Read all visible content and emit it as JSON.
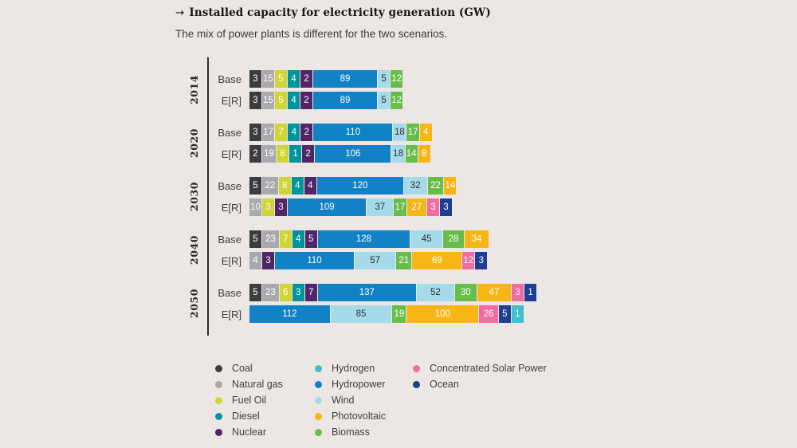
{
  "header": {
    "arrow": "→",
    "title": "Installed capacity for electricity generation (GW)",
    "subtitle": "The mix of power plants is different for the two scenarios."
  },
  "colors": {
    "background": "#ece7e5",
    "axis": "#2b2b2b",
    "coal": "#3c3c3e",
    "natural_gas": "#a8a9ad",
    "fuel_oil": "#cfd535",
    "diesel": "#00939e",
    "nuclear": "#522566",
    "hydrogen": "#3ebfc9",
    "hydropower": "#1182c6",
    "wind": "#a5dbe9",
    "photovoltaic": "#f8b616",
    "biomass": "#67bd4a",
    "csp": "#f06ca3",
    "ocean": "#1d3e92"
  },
  "legend": {
    "columns": [
      [
        {
          "key": "coal",
          "label": "Coal"
        },
        {
          "key": "natural_gas",
          "label": "Natural gas"
        },
        {
          "key": "fuel_oil",
          "label": "Fuel Oil"
        },
        {
          "key": "diesel",
          "label": "Diesel"
        },
        {
          "key": "nuclear",
          "label": "Nuclear"
        }
      ],
      [
        {
          "key": "hydrogen",
          "label": "Hydrogen"
        },
        {
          "key": "hydropower",
          "label": "Hydropower"
        },
        {
          "key": "wind",
          "label": "Wind"
        },
        {
          "key": "photovoltaic",
          "label": "Photovoltaic"
        },
        {
          "key": "biomass",
          "label": "Biomass"
        }
      ],
      [
        {
          "key": "csp",
          "label": "Concentrated Solar Power"
        },
        {
          "key": "ocean",
          "label": "Ocean"
        }
      ]
    ]
  },
  "chart_data": {
    "type": "bar",
    "stacked": true,
    "orientation": "horizontal",
    "unit": "GW",
    "title": "Installed capacity for electricity generation (GW)",
    "scenario_labels": [
      "Base",
      "E[R]"
    ],
    "groups": [
      {
        "year": "2014",
        "rows": [
          {
            "label": "Base",
            "segments": [
              {
                "k": "coal",
                "v": 3
              },
              {
                "k": "natural_gas",
                "v": 15
              },
              {
                "k": "fuel_oil",
                "v": 5
              },
              {
                "k": "diesel",
                "v": 4
              },
              {
                "k": "nuclear",
                "v": 2
              },
              {
                "k": "hydropower",
                "v": 89
              },
              {
                "k": "wind",
                "v": 5
              },
              {
                "k": "biomass",
                "v": 12
              }
            ]
          },
          {
            "label": "E[R]",
            "segments": [
              {
                "k": "coal",
                "v": 3
              },
              {
                "k": "natural_gas",
                "v": 15
              },
              {
                "k": "fuel_oil",
                "v": 5
              },
              {
                "k": "diesel",
                "v": 4
              },
              {
                "k": "nuclear",
                "v": 2
              },
              {
                "k": "hydropower",
                "v": 89
              },
              {
                "k": "wind",
                "v": 5
              },
              {
                "k": "biomass",
                "v": 12
              }
            ]
          }
        ]
      },
      {
        "year": "2020",
        "rows": [
          {
            "label": "Base",
            "segments": [
              {
                "k": "coal",
                "v": 3
              },
              {
                "k": "natural_gas",
                "v": 17
              },
              {
                "k": "fuel_oil",
                "v": 7
              },
              {
                "k": "diesel",
                "v": 4
              },
              {
                "k": "nuclear",
                "v": 2
              },
              {
                "k": "hydropower",
                "v": 110
              },
              {
                "k": "wind",
                "v": 18
              },
              {
                "k": "biomass",
                "v": 17
              },
              {
                "k": "photovoltaic",
                "v": 4
              }
            ]
          },
          {
            "label": "E[R]",
            "segments": [
              {
                "k": "coal",
                "v": 2
              },
              {
                "k": "natural_gas",
                "v": 19
              },
              {
                "k": "fuel_oil",
                "v": 8
              },
              {
                "k": "diesel",
                "v": 1
              },
              {
                "k": "nuclear",
                "v": 2
              },
              {
                "k": "hydropower",
                "v": 106
              },
              {
                "k": "wind",
                "v": 18
              },
              {
                "k": "biomass",
                "v": 14
              },
              {
                "k": "photovoltaic",
                "v": 8
              }
            ]
          }
        ]
      },
      {
        "year": "2030",
        "rows": [
          {
            "label": "Base",
            "segments": [
              {
                "k": "coal",
                "v": 5
              },
              {
                "k": "natural_gas",
                "v": 22
              },
              {
                "k": "fuel_oil",
                "v": 8
              },
              {
                "k": "diesel",
                "v": 4
              },
              {
                "k": "nuclear",
                "v": 4
              },
              {
                "k": "hydropower",
                "v": 120
              },
              {
                "k": "wind",
                "v": 32
              },
              {
                "k": "biomass",
                "v": 22
              },
              {
                "k": "photovoltaic",
                "v": 14
              }
            ]
          },
          {
            "label": "E[R]",
            "segments": [
              {
                "k": "natural_gas",
                "v": 10
              },
              {
                "k": "fuel_oil",
                "v": 3
              },
              {
                "k": "nuclear",
                "v": 3
              },
              {
                "k": "hydropower",
                "v": 109
              },
              {
                "k": "wind",
                "v": 37
              },
              {
                "k": "biomass",
                "v": 17
              },
              {
                "k": "photovoltaic",
                "v": 27
              },
              {
                "k": "csp",
                "v": 3
              },
              {
                "k": "ocean",
                "v": 3
              }
            ]
          }
        ]
      },
      {
        "year": "2040",
        "rows": [
          {
            "label": "Base",
            "segments": [
              {
                "k": "coal",
                "v": 5
              },
              {
                "k": "natural_gas",
                "v": 23
              },
              {
                "k": "fuel_oil",
                "v": 7
              },
              {
                "k": "diesel",
                "v": 4
              },
              {
                "k": "nuclear",
                "v": 5
              },
              {
                "k": "hydropower",
                "v": 128
              },
              {
                "k": "wind",
                "v": 45
              },
              {
                "k": "biomass",
                "v": 28
              },
              {
                "k": "photovoltaic",
                "v": 34
              }
            ]
          },
          {
            "label": "E[R]",
            "segments": [
              {
                "k": "natural_gas",
                "v": 4
              },
              {
                "k": "nuclear",
                "v": 3
              },
              {
                "k": "hydropower",
                "v": 110
              },
              {
                "k": "wind",
                "v": 57
              },
              {
                "k": "biomass",
                "v": 21
              },
              {
                "k": "photovoltaic",
                "v": 69
              },
              {
                "k": "csp",
                "v": 12
              },
              {
                "k": "ocean",
                "v": 3
              }
            ]
          }
        ]
      },
      {
        "year": "2050",
        "rows": [
          {
            "label": "Base",
            "segments": [
              {
                "k": "coal",
                "v": 5
              },
              {
                "k": "natural_gas",
                "v": 23
              },
              {
                "k": "fuel_oil",
                "v": 6
              },
              {
                "k": "diesel",
                "v": 3
              },
              {
                "k": "nuclear",
                "v": 7
              },
              {
                "k": "hydropower",
                "v": 137
              },
              {
                "k": "wind",
                "v": 52
              },
              {
                "k": "biomass",
                "v": 30
              },
              {
                "k": "photovoltaic",
                "v": 47
              },
              {
                "k": "csp",
                "v": 3
              },
              {
                "k": "ocean",
                "v": 1
              }
            ]
          },
          {
            "label": "E[R]",
            "segments": [
              {
                "k": "hydropower",
                "v": 112
              },
              {
                "k": "wind",
                "v": 85
              },
              {
                "k": "biomass",
                "v": 19
              },
              {
                "k": "photovoltaic",
                "v": 100
              },
              {
                "k": "csp",
                "v": 26
              },
              {
                "k": "ocean",
                "v": 5
              },
              {
                "k": "hydrogen",
                "v": 1
              }
            ]
          }
        ]
      }
    ]
  }
}
